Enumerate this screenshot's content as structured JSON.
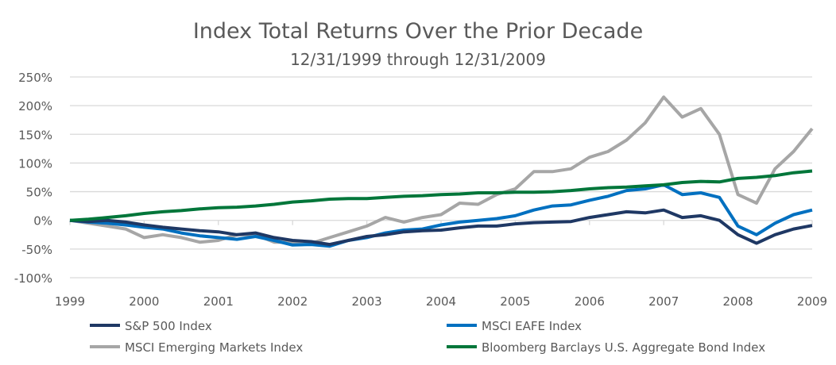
{
  "chart_data": {
    "type": "line",
    "title": "Index Total Returns Over the Prior Decade",
    "subtitle": "12/31/1999 through 12/31/2009",
    "xlabel": "",
    "ylabel": "",
    "xlim": [
      1999,
      2009
    ],
    "ylim": [
      -100,
      250
    ],
    "grid": true,
    "legend_placement": "bottom",
    "x_ticks": [
      "1999",
      "2000",
      "2001",
      "2002",
      "2003",
      "2004",
      "2005",
      "2006",
      "2007",
      "2008",
      "2009"
    ],
    "y_ticks": [
      "250%",
      "200%",
      "150%",
      "100%",
      "50%",
      "0%",
      "-50%",
      "-100%"
    ],
    "y_tick_values": [
      250,
      200,
      150,
      100,
      50,
      0,
      -50,
      -100
    ],
    "x": [
      1999,
      1999.25,
      1999.5,
      1999.75,
      2000,
      2000.25,
      2000.5,
      2000.75,
      2001,
      2001.25,
      2001.5,
      2001.75,
      2002,
      2002.25,
      2002.5,
      2002.75,
      2003,
      2003.25,
      2003.5,
      2003.75,
      2004,
      2004.25,
      2004.5,
      2004.75,
      2005,
      2005.25,
      2005.5,
      2005.75,
      2006,
      2006.25,
      2006.5,
      2006.75,
      2007,
      2007.25,
      2007.5,
      2007.75,
      2008,
      2008.25,
      2008.5,
      2008.75,
      2009
    ],
    "series": [
      {
        "name": "S&P 500 Index",
        "color": "#1f3864",
        "values": [
          0,
          -2,
          0,
          -3,
          -8,
          -12,
          -15,
          -18,
          -20,
          -25,
          -22,
          -30,
          -35,
          -37,
          -42,
          -35,
          -28,
          -25,
          -20,
          -18,
          -17,
          -13,
          -10,
          -10,
          -6,
          -4,
          -3,
          -2,
          5,
          10,
          15,
          13,
          18,
          5,
          8,
          0,
          -25,
          -40,
          -25,
          -15,
          -9
        ]
      },
      {
        "name": "MSCI EAFE Index",
        "color": "#0070c0",
        "values": [
          0,
          -3,
          -5,
          -8,
          -12,
          -15,
          -22,
          -27,
          -30,
          -33,
          -28,
          -35,
          -43,
          -42,
          -45,
          -35,
          -30,
          -22,
          -17,
          -15,
          -8,
          -3,
          0,
          3,
          8,
          18,
          25,
          27,
          35,
          42,
          52,
          55,
          62,
          45,
          48,
          40,
          -10,
          -25,
          -5,
          10,
          18
        ]
      },
      {
        "name": "MSCI Emerging Markets Index",
        "color": "#a6a6a6",
        "values": [
          0,
          -5,
          -10,
          -15,
          -30,
          -25,
          -30,
          -38,
          -35,
          -25,
          -25,
          -38,
          -38,
          -40,
          -30,
          -20,
          -10,
          5,
          -3,
          5,
          10,
          30,
          28,
          45,
          55,
          85,
          85,
          90,
          110,
          120,
          140,
          170,
          215,
          180,
          195,
          150,
          45,
          30,
          90,
          120,
          160
        ]
      },
      {
        "name": "Bloomberg Barclays U.S. Aggregate Bond Index",
        "color": "#00763a",
        "values": [
          0,
          2,
          5,
          8,
          12,
          15,
          17,
          20,
          22,
          23,
          25,
          28,
          32,
          34,
          37,
          38,
          38,
          40,
          42,
          43,
          45,
          46,
          48,
          48,
          49,
          49,
          50,
          52,
          55,
          57,
          58,
          60,
          62,
          66,
          68,
          67,
          73,
          75,
          78,
          83,
          86
        ]
      }
    ]
  }
}
